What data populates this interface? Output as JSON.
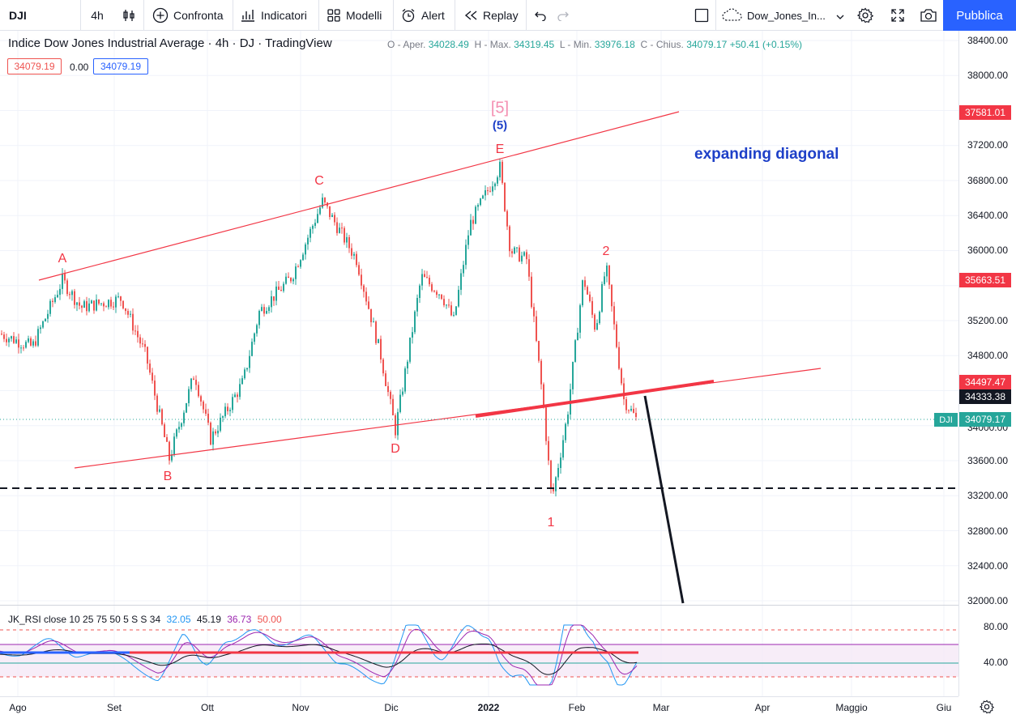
{
  "toolbar": {
    "symbol": "DJI",
    "interval": "4h",
    "compare": "Confronta",
    "indicators": "Indicatori",
    "templates": "Modelli",
    "alert": "Alert",
    "replay": "Replay",
    "layout_name": "Dow_Jones_In...",
    "publish": "Pubblica"
  },
  "legend": {
    "title": "Indice Dow Jones Industrial Average · 4h · DJ · TradingView",
    "o_label": "O - Aper.",
    "o": "34028.49",
    "h_label": "H - Max.",
    "h": "34319.45",
    "l_label": "L - Min.",
    "l": "33976.18",
    "c_label": "C - Chius.",
    "c": "34079.17",
    "change": "+50.41 (+0.15%)",
    "bid": "34079.19",
    "spread": "0.00",
    "ask": "34079.19"
  },
  "price_axis": {
    "ticks": [
      "38400.00",
      "38000.00",
      "37200.00",
      "36800.00",
      "36400.00",
      "36000.00",
      "35200.00",
      "34800.00",
      "33600.00",
      "33200.00",
      "32800.00",
      "32400.00",
      "32000.00"
    ],
    "tag_upper_line": "37581.01",
    "tag_mid": "35663.51",
    "tag_lower_line": "34497.47",
    "tag_crosshair": "34333.38",
    "tag_last": "34079.17",
    "last_symbol": "DJI",
    "partial_tick": "34000.00"
  },
  "time_axis": {
    "ticks": [
      "Ago",
      "Set",
      "Ott",
      "Nov",
      "Dic",
      "2022",
      "Feb",
      "Mar",
      "Apr",
      "Maggio",
      "Giu"
    ]
  },
  "waves": {
    "A": "A",
    "B": "B",
    "C": "C",
    "D": "D",
    "E": "E",
    "deg5": "[5]",
    "sub5": "(5)",
    "w1": "1",
    "w2": "2"
  },
  "annotation": "expanding diagonal",
  "rsi": {
    "name": "JK_RSI close 10 25 75 50 5 S S 34",
    "v1": "32.05",
    "v2": "45.19",
    "v3": "36.73",
    "v4": "50.00",
    "ticks": [
      "80.00",
      "40.00"
    ]
  },
  "colors": {
    "up": "#26a69a",
    "down": "#ef5350",
    "trendline": "#f23645",
    "accent": "#2962ff",
    "annotation": "#1e40c8"
  },
  "chart_data": {
    "type": "candlestick",
    "interval": "4h",
    "y_range": [
      32000,
      38400
    ],
    "key_levels": {
      "A": 35660,
      "B": 33620,
      "C": 36560,
      "D": 33950,
      "E": 36950,
      "w1": 33150,
      "w2": 35820,
      "last": 34079.17
    },
    "dashed_support": 33300
  }
}
